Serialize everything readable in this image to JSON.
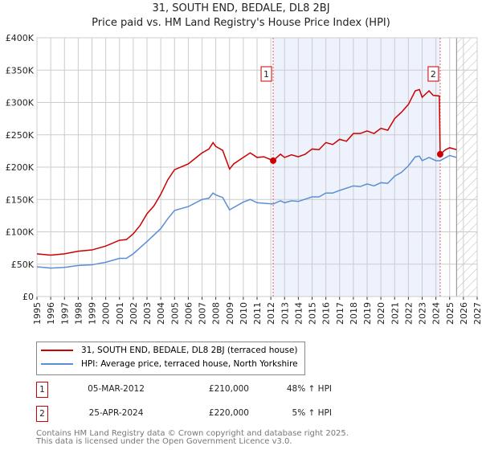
{
  "title": "31, SOUTH END, BEDALE, DL8 2BJ",
  "subtitle": "Price paid vs. HM Land Registry's House Price Index (HPI)",
  "colors": {
    "price": "#cc0000",
    "hpi": "#5b8fd4",
    "shade": "#eef2fc"
  },
  "chart_data": {
    "type": "line",
    "title": "31, SOUTH END, BEDALE, DL8 2BJ — Price paid vs. HM Land Registry's House Price Index (HPI)",
    "xlim": [
      1995,
      2027
    ],
    "ylim": [
      0,
      400000
    ],
    "x_ticks": [
      "1995",
      "1996",
      "1997",
      "1998",
      "1999",
      "2000",
      "2001",
      "2002",
      "2003",
      "2004",
      "2005",
      "2006",
      "2007",
      "2008",
      "2009",
      "2010",
      "2011",
      "2012",
      "2013",
      "2014",
      "2015",
      "2016",
      "2017",
      "2018",
      "2019",
      "2020",
      "2021",
      "2022",
      "2023",
      "2024",
      "2025",
      "2026",
      "2027"
    ],
    "y_ticks": [
      {
        "v": 0,
        "label": "£0"
      },
      {
        "v": 50000,
        "label": "£50K"
      },
      {
        "v": 100000,
        "label": "£100K"
      },
      {
        "v": 150000,
        "label": "£150K"
      },
      {
        "v": 200000,
        "label": "£200K"
      },
      {
        "v": 250000,
        "label": "£250K"
      },
      {
        "v": 300000,
        "label": "£300K"
      },
      {
        "v": 350000,
        "label": "£350K"
      },
      {
        "v": 400000,
        "label": "£400K"
      }
    ],
    "grid": true,
    "shaded_range": [
      2012.17,
      2024.31
    ],
    "forecast_hatch_from": 2025.5,
    "series": [
      {
        "name": "31, SOUTH END, BEDALE, DL8 2BJ (terraced house)",
        "color": "#cc0000",
        "x": [
          1995,
          1996,
          1997,
          1998,
          1999,
          2000,
          2001,
          2001.5,
          2002,
          2002.5,
          2003,
          2003.5,
          2004,
          2004.5,
          2005,
          2006,
          2007,
          2007.5,
          2007.8,
          2008,
          2008.5,
          2009,
          2009.3,
          2010,
          2010.5,
          2011,
          2011.5,
          2012.17,
          2012.7,
          2013,
          2013.5,
          2014,
          2014.5,
          2015,
          2015.5,
          2016,
          2016.5,
          2017,
          2017.5,
          2018,
          2018.5,
          2019,
          2019.5,
          2020,
          2020.5,
          2021,
          2021.5,
          2022,
          2022.5,
          2022.8,
          2023,
          2023.5,
          2023.8,
          2024.25,
          2024.31,
          2024.7,
          2025,
          2025.5
        ],
        "values": [
          66000,
          64000,
          66000,
          70000,
          72000,
          78000,
          87000,
          88000,
          97000,
          110000,
          128000,
          140000,
          158000,
          180000,
          196000,
          205000,
          222000,
          228000,
          238000,
          232000,
          226000,
          197000,
          205000,
          215000,
          222000,
          215000,
          216000,
          210000,
          220000,
          215000,
          219000,
          216000,
          220000,
          228000,
          227000,
          238000,
          235000,
          243000,
          240000,
          252000,
          252000,
          256000,
          252000,
          260000,
          257000,
          275000,
          285000,
          297000,
          318000,
          320000,
          308000,
          318000,
          311000,
          310000,
          220000,
          227000,
          230000,
          227000
        ]
      },
      {
        "name": "HPI: Average price, terraced house, North Yorkshire",
        "color": "#5b8fd4",
        "x": [
          1995,
          1996,
          1997,
          1998,
          1999,
          2000,
          2001,
          2001.5,
          2002,
          2003,
          2004,
          2004.5,
          2005,
          2006,
          2007,
          2007.5,
          2007.8,
          2008,
          2008.5,
          2009,
          2010,
          2010.5,
          2011,
          2012.17,
          2012.7,
          2013,
          2013.5,
          2014,
          2015,
          2015.5,
          2016,
          2016.5,
          2017,
          2018,
          2018.5,
          2019,
          2019.5,
          2020,
          2020.5,
          2021,
          2021.5,
          2022,
          2022.5,
          2022.8,
          2023,
          2023.5,
          2024,
          2024.3,
          2025,
          2025.5
        ],
        "values": [
          46000,
          44000,
          45000,
          48000,
          49000,
          53000,
          59000,
          59000,
          66000,
          85000,
          105000,
          120000,
          133000,
          139000,
          150000,
          152000,
          160000,
          157000,
          153000,
          134000,
          146000,
          150000,
          145000,
          143000,
          148000,
          145000,
          148000,
          147000,
          154000,
          154000,
          160000,
          160000,
          164000,
          171000,
          170000,
          174000,
          171000,
          176000,
          175000,
          186000,
          192000,
          202000,
          216000,
          217000,
          210000,
          215000,
          210000,
          210000,
          218000,
          215000
        ]
      }
    ],
    "annotations": [
      {
        "label": "1",
        "x": 2012.17,
        "y": 210000
      },
      {
        "label": "2",
        "x": 2024.31,
        "y": 220000
      }
    ]
  },
  "legend": [
    {
      "label": "31, SOUTH END, BEDALE, DL8 2BJ (terraced house)"
    },
    {
      "label": "HPI: Average price, terraced house, North Yorkshire"
    }
  ],
  "transactions": [
    {
      "num": "1",
      "date": "05-MAR-2012",
      "price": "£210,000",
      "hpi": "48% ↑ HPI"
    },
    {
      "num": "2",
      "date": "25-APR-2024",
      "price": "£220,000",
      "hpi": "5% ↑ HPI"
    }
  ],
  "footer": {
    "line1": "Contains HM Land Registry data © Crown copyright and database right 2025.",
    "line2": "This data is licensed under the Open Government Licence v3.0."
  }
}
